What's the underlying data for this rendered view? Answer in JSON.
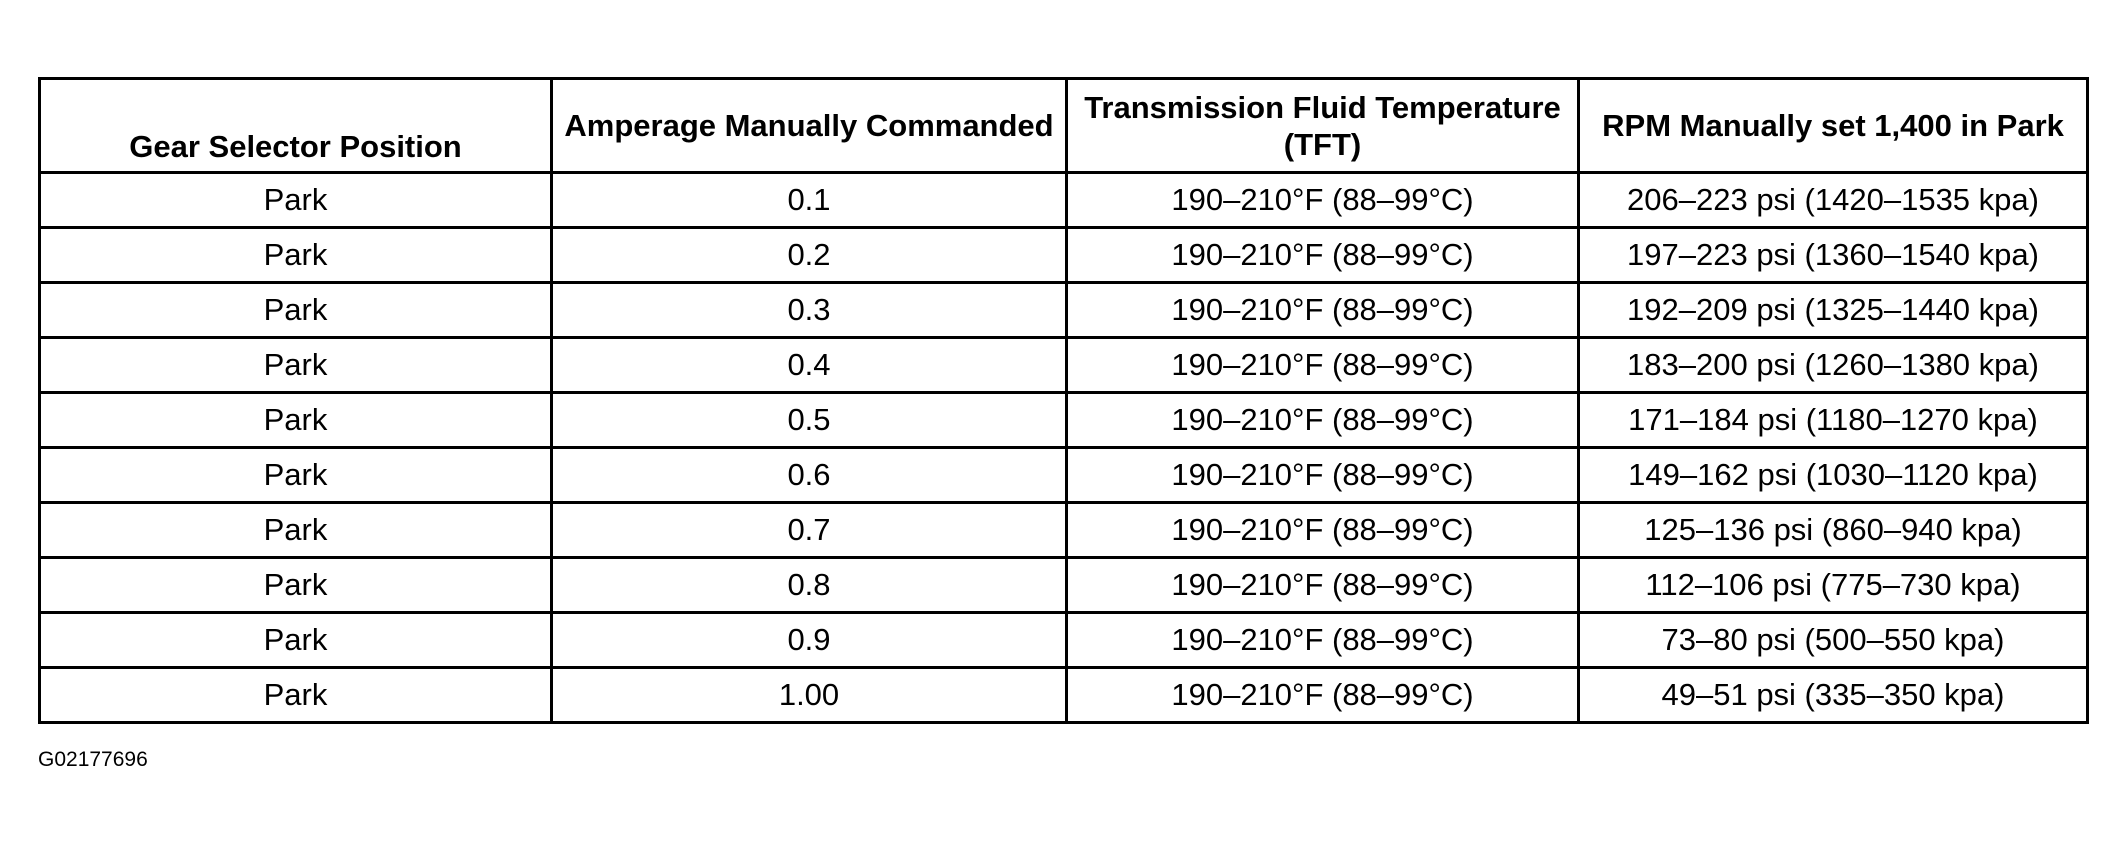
{
  "table": {
    "columns": [
      "Gear Selector Position",
      "Amperage Manually Commanded",
      "Transmission Fluid Temperature (TFT)",
      "RPM Manually set 1,400 in Park"
    ],
    "rows": [
      [
        "Park",
        "0.1",
        "190–210°F (88–99°C)",
        "206–223 psi (1420–1535 kpa)"
      ],
      [
        "Park",
        "0.2",
        "190–210°F (88–99°C)",
        "197–223 psi (1360–1540 kpa)"
      ],
      [
        "Park",
        "0.3",
        "190–210°F (88–99°C)",
        "192–209 psi (1325–1440 kpa)"
      ],
      [
        "Park",
        "0.4",
        "190–210°F (88–99°C)",
        "183–200 psi (1260–1380 kpa)"
      ],
      [
        "Park",
        "0.5",
        "190–210°F (88–99°C)",
        "171–184 psi (1180–1270 kpa)"
      ],
      [
        "Park",
        "0.6",
        "190–210°F (88–99°C)",
        "149–162 psi (1030–1120 kpa)"
      ],
      [
        "Park",
        "0.7",
        "190–210°F (88–99°C)",
        "125–136 psi (860–940 kpa)"
      ],
      [
        "Park",
        "0.8",
        "190–210°F (88–99°C)",
        "112–106 psi (775–730 kpa)"
      ],
      [
        "Park",
        "0.9",
        "190–210°F (88–99°C)",
        "73–80 psi (500–550 kpa)"
      ],
      [
        "Park",
        "1.00",
        "190–210°F (88–99°C)",
        "49–51 psi (335–350 kpa)"
      ]
    ]
  },
  "footer": {
    "code": "G02177696"
  }
}
